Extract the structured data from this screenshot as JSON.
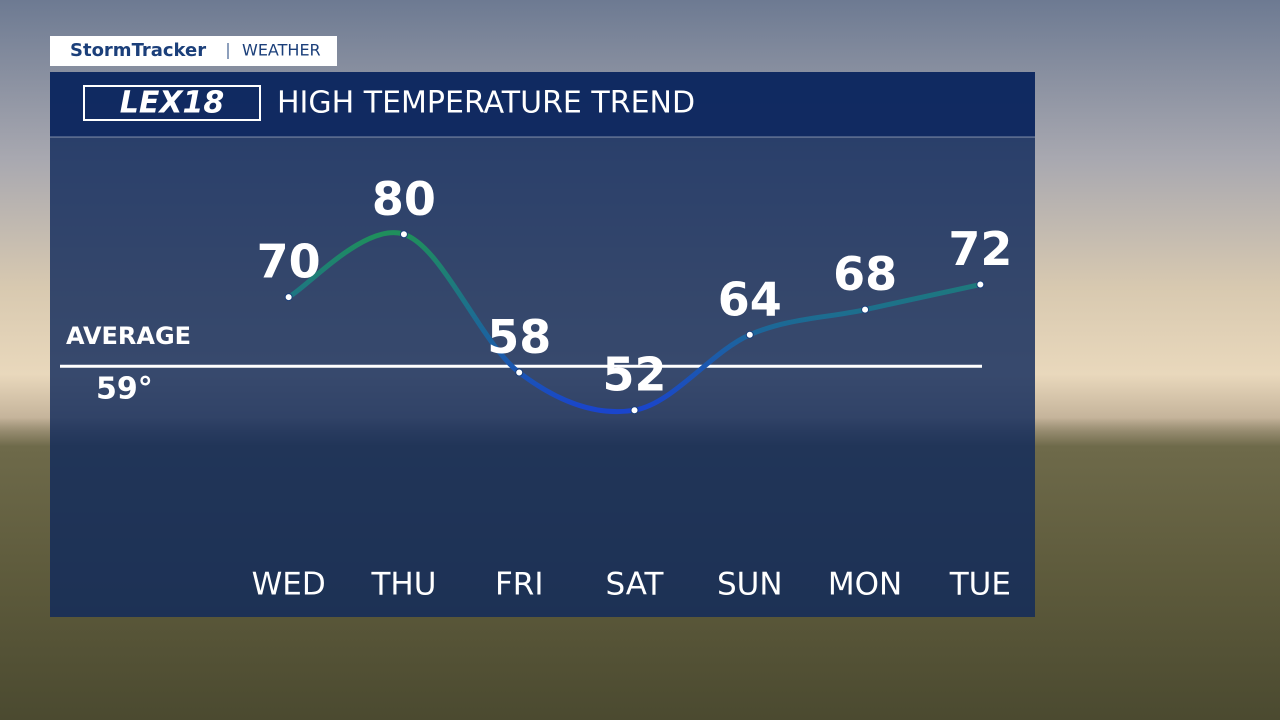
{
  "header": {
    "brand": "StormTracker",
    "section": "WEATHER",
    "logo": "LEX18"
  },
  "chart_data": {
    "type": "line",
    "title": "HIGH TEMPERATURE TREND",
    "categories": [
      "WED",
      "THU",
      "FRI",
      "SAT",
      "SUN",
      "MON",
      "TUE"
    ],
    "values": [
      70,
      80,
      58,
      52,
      64,
      68,
      72
    ],
    "ylim": [
      28,
      95
    ],
    "colors": [
      "#1f8f5c",
      "#1a45cc"
    ],
    "average": {
      "title": "AVERAGE",
      "value": 59,
      "label": "59°"
    }
  }
}
